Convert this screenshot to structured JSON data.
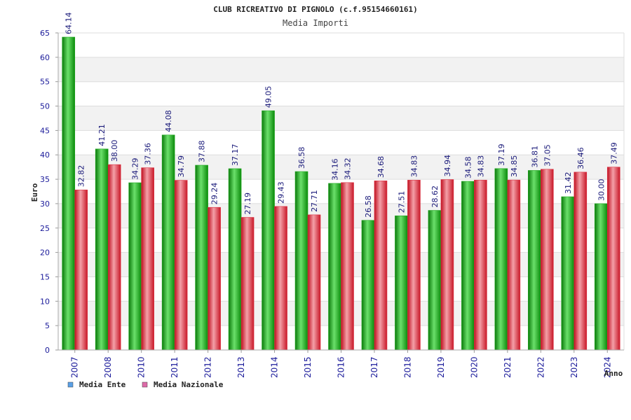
{
  "header": {
    "title": "CLUB RICREATIVO DI PIGNOLO (c.f.95154660161)",
    "subtitle": "Media Importi"
  },
  "colors": {
    "ente": "#22aa22",
    "nazionale": "#dd3344",
    "ente_legend": "#5aa0e6",
    "nazionale_legend": "#dd6aa8",
    "axis_text": "#1a1a9a",
    "label_text": "#1a1a7a",
    "band": "#f2f2f2",
    "grid": "#dddddd"
  },
  "chart_data": {
    "type": "bar",
    "title": "CLUB RICREATIVO DI PIGNOLO (c.f.95154660161)",
    "subtitle": "Media Importi",
    "xlabel": "Anno",
    "ylabel": "Euro",
    "ylim": [
      0,
      65
    ],
    "ytick_step": 5,
    "categories": [
      "2007",
      "2008",
      "2010",
      "2011",
      "2012",
      "2013",
      "2014",
      "2015",
      "2016",
      "2017",
      "2018",
      "2019",
      "2020",
      "2021",
      "2022",
      "2023",
      "2024"
    ],
    "series": [
      {
        "name": "Media Ente",
        "values": [
          64.14,
          41.21,
          34.29,
          44.08,
          37.88,
          37.17,
          49.05,
          36.58,
          34.16,
          26.58,
          27.51,
          28.62,
          34.58,
          37.19,
          36.81,
          31.42,
          30.0
        ],
        "labels": [
          "64.14",
          "41.21",
          "34.29",
          "44.08",
          "37.88",
          "37.17",
          "49.05",
          "36.58",
          "34.16",
          "26.58",
          "27.51",
          "28.62",
          "34.58",
          "37.19",
          "36.81",
          "31.42",
          "30.00"
        ]
      },
      {
        "name": "Media Nazionale",
        "values": [
          32.82,
          38.0,
          37.36,
          34.79,
          29.24,
          27.19,
          29.43,
          27.71,
          34.32,
          34.68,
          34.83,
          34.94,
          34.83,
          34.85,
          37.05,
          36.46,
          37.49
        ],
        "labels": [
          "32.82",
          "38.00",
          "37.36",
          "34.79",
          "29.24",
          "27.19",
          "29.43",
          "27.71",
          "34.32",
          "34.68",
          "34.83",
          "34.94",
          "34.83",
          "34.85",
          "37.05",
          "36.46",
          "37.49"
        ]
      }
    ],
    "legend_position": "bottom-left",
    "grid": true
  }
}
